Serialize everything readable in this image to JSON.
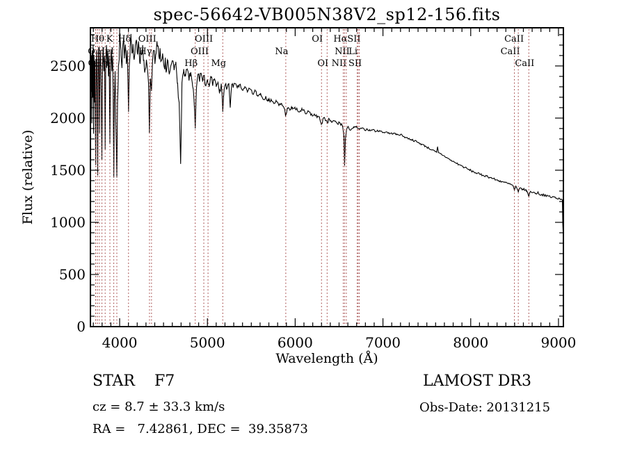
{
  "title": "spec-56642-VB005N38V2_sp12-156.fits",
  "annotations": {
    "class_label": "STAR    F7",
    "cz": "cz = 8.7 ± 33.3 km/s",
    "radec": "RA =   7.42861, DEC =  39.35873",
    "survey": "LAMOST DR3",
    "obs_date": "Obs-Date: 20131215"
  },
  "chart_data": {
    "type": "line",
    "title": "spec-56642-VB005N38V2_sp12-156.fits",
    "xlabel": "Wavelength (Å)",
    "ylabel": "Flux (relative)",
    "xlim": [
      3667,
      9056
    ],
    "ylim": [
      0,
      2866
    ],
    "x_ticks_major": [
      4000,
      5000,
      6000,
      7000,
      8000,
      9000
    ],
    "y_ticks_major": [
      0,
      500,
      1000,
      1500,
      2000,
      2500
    ],
    "x_minor_step": 100,
    "y_minor_step": 100,
    "y_minor_max": 2800,
    "grid": false,
    "line_color": "#000000",
    "marker_line_color": "#993333",
    "spectral_lines": [
      {
        "label": "O",
        "wavelength": 3727,
        "row": 2
      },
      {
        "label": "O",
        "wavelength": 3729,
        "row": 3
      },
      {
        "label": "",
        "wavelength": 3750,
        "row": 0
      },
      {
        "label": "",
        "wavelength": 3771,
        "row": 0
      },
      {
        "label": "Hθ",
        "wavelength": 3798,
        "row": 1
      },
      {
        "label": "Hη",
        "wavelength": 3835,
        "row": 3
      },
      {
        "label": "HeI",
        "wavelength": 3889,
        "row": 2
      },
      {
        "label": "K",
        "wavelength": 3933,
        "row": 1
      },
      {
        "label": "",
        "wavelength": 3968,
        "row": 0
      },
      {
        "label": "Hδ",
        "wavelength": 4101,
        "row": 1
      },
      {
        "label": "Hγ",
        "wavelength": 4340,
        "row": 2
      },
      {
        "label": "OIII",
        "wavelength": 4363,
        "row": 1
      },
      {
        "label": "Hβ",
        "wavelength": 4861,
        "row": 3
      },
      {
        "label": "OIII",
        "wavelength": 4959,
        "row": 2
      },
      {
        "label": "OIII",
        "wavelength": 5007,
        "row": 1
      },
      {
        "label": "Mg",
        "wavelength": 5175,
        "row": 3
      },
      {
        "label": "Na",
        "wavelength": 5893,
        "row": 2
      },
      {
        "label": "OI",
        "wavelength": 6300,
        "row": 1
      },
      {
        "label": "OI",
        "wavelength": 6364,
        "row": 3
      },
      {
        "label": "NII",
        "wavelength": 6548,
        "row": 3
      },
      {
        "label": "Hα",
        "wavelength": 6563,
        "row": 1
      },
      {
        "label": "NII",
        "wavelength": 6583,
        "row": 2
      },
      {
        "label": "Li",
        "wavelength": 6707,
        "row": 2
      },
      {
        "label": "SII",
        "wavelength": 6717,
        "row": 1
      },
      {
        "label": "SII",
        "wavelength": 6731,
        "row": 3
      },
      {
        "label": "CaII",
        "wavelength": 8498,
        "row": 2
      },
      {
        "label": "CaII",
        "wavelength": 8542,
        "row": 1
      },
      {
        "label": "CaII",
        "wavelength": 8662,
        "row": 3
      }
    ],
    "noise": {
      "seed": 7,
      "step": 9,
      "amps": [
        [
          4560,
          85
        ],
        [
          5250,
          42
        ],
        [
          6650,
          20
        ],
        [
          7800,
          9
        ],
        [
          9100,
          11
        ]
      ]
    },
    "spectrum_anchors": [
      [
        3667,
        0
      ],
      [
        3669,
        2450
      ],
      [
        3673,
        2250
      ],
      [
        3678,
        2600
      ],
      [
        3683,
        1950
      ],
      [
        3688,
        2650
      ],
      [
        3693,
        2200
      ],
      [
        3698,
        2700
      ],
      [
        3703,
        1850
      ],
      [
        3708,
        2600
      ],
      [
        3713,
        2150
      ],
      [
        3718,
        2550
      ],
      [
        3727,
        1550
      ],
      [
        3733,
        2450
      ],
      [
        3739,
        2650
      ],
      [
        3745,
        2050
      ],
      [
        3750,
        1450
      ],
      [
        3756,
        2500
      ],
      [
        3762,
        2680
      ],
      [
        3770,
        1850
      ],
      [
        3776,
        2550
      ],
      [
        3783,
        2650
      ],
      [
        3790,
        2250
      ],
      [
        3798,
        1600
      ],
      [
        3805,
        2500
      ],
      [
        3812,
        2680
      ],
      [
        3820,
        2450
      ],
      [
        3828,
        2600
      ],
      [
        3835,
        1700
      ],
      [
        3842,
        2550
      ],
      [
        3850,
        2700
      ],
      [
        3858,
        2500
      ],
      [
        3865,
        2650
      ],
      [
        3872,
        2400
      ],
      [
        3880,
        2600
      ],
      [
        3889,
        1750
      ],
      [
        3896,
        2500
      ],
      [
        3905,
        2660
      ],
      [
        3912,
        2450
      ],
      [
        3920,
        2600
      ],
      [
        3926,
        2250
      ],
      [
        3933,
        1430
      ],
      [
        3940,
        2150
      ],
      [
        3948,
        2450
      ],
      [
        3955,
        2000
      ],
      [
        3962,
        1750
      ],
      [
        3968,
        1430
      ],
      [
        3976,
        2150
      ],
      [
        3986,
        2500
      ],
      [
        3996,
        2650
      ],
      [
        4006,
        2740
      ],
      [
        4016,
        2600
      ],
      [
        4026,
        2480
      ],
      [
        4036,
        2700
      ],
      [
        4046,
        2770
      ],
      [
        4056,
        2600
      ],
      [
        4066,
        2700
      ],
      [
        4076,
        2520
      ],
      [
        4086,
        2650
      ],
      [
        4095,
        2330
      ],
      [
        4101,
        2060
      ],
      [
        4110,
        2500
      ],
      [
        4120,
        2690
      ],
      [
        4130,
        2770
      ],
      [
        4141,
        2620
      ],
      [
        4152,
        2710
      ],
      [
        4165,
        2560
      ],
      [
        4178,
        2700
      ],
      [
        4192,
        2750
      ],
      [
        4206,
        2610
      ],
      [
        4220,
        2680
      ],
      [
        4234,
        2520
      ],
      [
        4248,
        2610
      ],
      [
        4262,
        2700
      ],
      [
        4276,
        2560
      ],
      [
        4290,
        2460
      ],
      [
        4305,
        2560
      ],
      [
        4320,
        2440
      ],
      [
        4330,
        2280
      ],
      [
        4340,
        1890
      ],
      [
        4351,
        2380
      ],
      [
        4363,
        2260
      ],
      [
        4375,
        2540
      ],
      [
        4388,
        2650
      ],
      [
        4402,
        2520
      ],
      [
        4416,
        2620
      ],
      [
        4430,
        2690
      ],
      [
        4445,
        2600
      ],
      [
        4460,
        2670
      ],
      [
        4475,
        2550
      ],
      [
        4490,
        2620
      ],
      [
        4505,
        2500
      ],
      [
        4520,
        2580
      ],
      [
        4535,
        2460
      ],
      [
        4550,
        2550
      ],
      [
        4566,
        2420
      ],
      [
        4582,
        2500
      ],
      [
        4600,
        2550
      ],
      [
        4620,
        2460
      ],
      [
        4640,
        2540
      ],
      [
        4660,
        2340
      ],
      [
        4680,
        2090
      ],
      [
        4695,
        1560
      ],
      [
        4710,
        2340
      ],
      [
        4730,
        2470
      ],
      [
        4750,
        2400
      ],
      [
        4770,
        2470
      ],
      [
        4790,
        2360
      ],
      [
        4810,
        2440
      ],
      [
        4830,
        2310
      ],
      [
        4846,
        2190
      ],
      [
        4861,
        1900
      ],
      [
        4876,
        2300
      ],
      [
        4892,
        2420
      ],
      [
        4910,
        2350
      ],
      [
        4928,
        2430
      ],
      [
        4946,
        2350
      ],
      [
        4964,
        2410
      ],
      [
        4982,
        2310
      ],
      [
        5000,
        2370
      ],
      [
        5020,
        2300
      ],
      [
        5040,
        2390
      ],
      [
        5060,
        2310
      ],
      [
        5080,
        2380
      ],
      [
        5100,
        2300
      ],
      [
        5120,
        2350
      ],
      [
        5140,
        2270
      ],
      [
        5158,
        2330
      ],
      [
        5175,
        2060
      ],
      [
        5192,
        2280
      ],
      [
        5210,
        2330
      ],
      [
        5228,
        2300
      ],
      [
        5244,
        2330
      ],
      [
        5260,
        2100
      ],
      [
        5276,
        2320
      ],
      [
        5295,
        2300
      ],
      [
        5315,
        2330
      ],
      [
        5340,
        2290
      ],
      [
        5365,
        2320
      ],
      [
        5395,
        2270
      ],
      [
        5425,
        2300
      ],
      [
        5455,
        2250
      ],
      [
        5485,
        2280
      ],
      [
        5515,
        2230
      ],
      [
        5545,
        2260
      ],
      [
        5575,
        2210
      ],
      [
        5605,
        2240
      ],
      [
        5635,
        2180
      ],
      [
        5665,
        2210
      ],
      [
        5695,
        2160
      ],
      [
        5725,
        2180
      ],
      [
        5755,
        2140
      ],
      [
        5785,
        2160
      ],
      [
        5815,
        2120
      ],
      [
        5845,
        2140
      ],
      [
        5872,
        2100
      ],
      [
        5893,
        2030
      ],
      [
        5912,
        2090
      ],
      [
        5940,
        2080
      ],
      [
        5970,
        2100
      ],
      [
        6000,
        2090
      ],
      [
        6040,
        2060
      ],
      [
        6080,
        2080
      ],
      [
        6120,
        2040
      ],
      [
        6160,
        2060
      ],
      [
        6200,
        2020
      ],
      [
        6240,
        2030
      ],
      [
        6280,
        1990
      ],
      [
        6300,
        1945
      ],
      [
        6322,
        2000
      ],
      [
        6344,
        1975
      ],
      [
        6364,
        1950
      ],
      [
        6390,
        1990
      ],
      [
        6420,
        1960
      ],
      [
        6450,
        1970
      ],
      [
        6480,
        1945
      ],
      [
        6510,
        1955
      ],
      [
        6540,
        1925
      ],
      [
        6556,
        1820
      ],
      [
        6563,
        1545
      ],
      [
        6572,
        1800
      ],
      [
        6586,
        1890
      ],
      [
        6610,
        1905
      ],
      [
        6640,
        1895
      ],
      [
        6670,
        1910
      ],
      [
        6700,
        1915
      ],
      [
        6730,
        1890
      ],
      [
        6760,
        1905
      ],
      [
        6790,
        1885
      ],
      [
        6820,
        1895
      ],
      [
        6850,
        1880
      ],
      [
        6885,
        1890
      ],
      [
        6920,
        1872
      ],
      [
        6960,
        1880
      ],
      [
        7000,
        1862
      ],
      [
        7040,
        1868
      ],
      [
        7080,
        1850
      ],
      [
        7120,
        1855
      ],
      [
        7160,
        1840
      ],
      [
        7200,
        1843
      ],
      [
        7240,
        1822
      ],
      [
        7280,
        1808
      ],
      [
        7320,
        1795
      ],
      [
        7360,
        1782
      ],
      [
        7400,
        1765
      ],
      [
        7440,
        1750
      ],
      [
        7480,
        1732
      ],
      [
        7520,
        1712
      ],
      [
        7560,
        1695
      ],
      [
        7595,
        1678
      ],
      [
        7612,
        1672
      ],
      [
        7622,
        1722
      ],
      [
        7632,
        1668
      ],
      [
        7655,
        1658
      ],
      [
        7690,
        1640
      ],
      [
        7725,
        1622
      ],
      [
        7760,
        1602
      ],
      [
        7795,
        1585
      ],
      [
        7830,
        1570
      ],
      [
        7865,
        1555
      ],
      [
        7900,
        1540
      ],
      [
        7935,
        1525
      ],
      [
        7970,
        1508
      ],
      [
        8005,
        1495
      ],
      [
        8040,
        1482
      ],
      [
        8075,
        1470
      ],
      [
        8110,
        1458
      ],
      [
        8145,
        1450
      ],
      [
        8180,
        1445
      ],
      [
        8215,
        1432
      ],
      [
        8250,
        1422
      ],
      [
        8285,
        1408
      ],
      [
        8320,
        1400
      ],
      [
        8355,
        1392
      ],
      [
        8390,
        1382
      ],
      [
        8425,
        1372
      ],
      [
        8460,
        1362
      ],
      [
        8482,
        1352
      ],
      [
        8498,
        1308
      ],
      [
        8514,
        1348
      ],
      [
        8542,
        1288
      ],
      [
        8558,
        1330
      ],
      [
        8588,
        1320
      ],
      [
        8620,
        1310
      ],
      [
        8640,
        1300
      ],
      [
        8662,
        1248
      ],
      [
        8680,
        1298
      ],
      [
        8710,
        1288
      ],
      [
        8740,
        1278
      ],
      [
        8770,
        1284
      ],
      [
        8800,
        1262
      ],
      [
        8830,
        1268
      ],
      [
        8860,
        1248
      ],
      [
        8890,
        1254
      ],
      [
        8920,
        1238
      ],
      [
        8950,
        1244
      ],
      [
        8980,
        1228
      ],
      [
        9005,
        1234
      ],
      [
        9028,
        1222
      ],
      [
        9044,
        1212
      ],
      [
        9049,
        980
      ],
      [
        9053,
        900
      ]
    ]
  }
}
